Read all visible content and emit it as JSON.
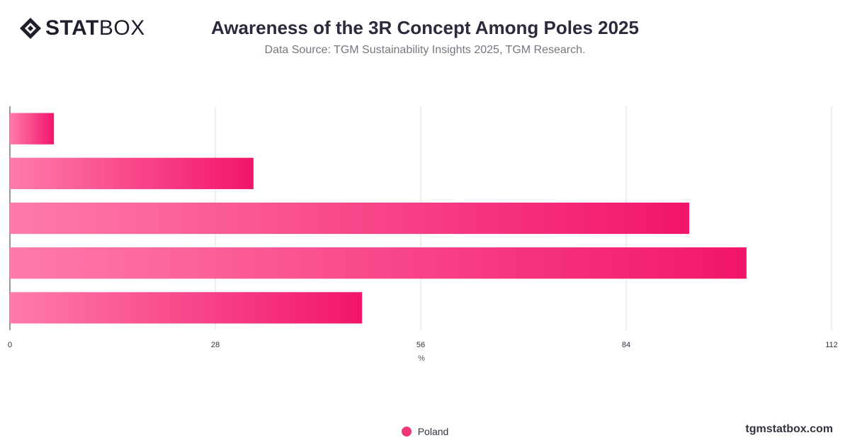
{
  "brand": {
    "logo_bold": "STAT",
    "logo_light": "BOX",
    "footer_url": "tgmstatbox.com"
  },
  "chart_data": {
    "type": "bar",
    "orientation": "horizontal",
    "title": "Awareness of the 3R Concept Among Poles 2025",
    "subtitle": "Data Source: TGM Sustainability Insights 2025, TGM Research.",
    "xlabel": "%",
    "ylabel": "",
    "xlim": [
      0,
      112
    ],
    "xticks": [
      0,
      28,
      56,
      84,
      112
    ],
    "grid": true,
    "legend_position": "bottom-center",
    "series": [
      {
        "name": "Poland",
        "color": "#f0377a",
        "values": [
          6,
          33.2,
          92.6,
          100.4,
          48
        ]
      }
    ],
    "colors": {
      "bar_gradient_start": "#ff7bab",
      "bar_gradient_end": "#f2156a",
      "grid": "#dddddd",
      "axis": "#333333",
      "tick_label": "#333340"
    }
  }
}
